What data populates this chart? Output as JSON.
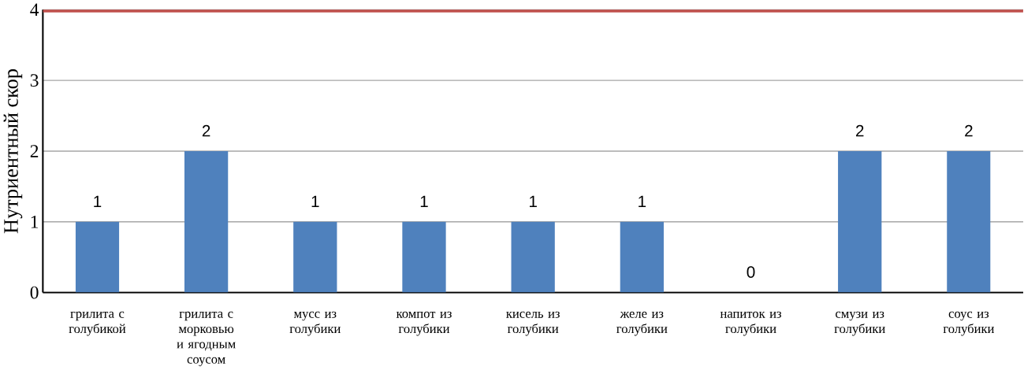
{
  "chart_data": {
    "type": "bar",
    "ylabel": "Нутриентный скор",
    "categories": [
      "грилита с голубикой",
      "грилита с морковью и ягодным соусом",
      "мусс из голубики",
      "компот из голубики",
      "кисель из голубики",
      "желе из голубики",
      "напиток из голубики",
      "смузи из голубики",
      "соус из голубики"
    ],
    "values": [
      1,
      2,
      1,
      1,
      1,
      1,
      0,
      2,
      2
    ],
    "color": "#4f81bd",
    "ylim": [
      0,
      4
    ],
    "yticks": [
      0,
      1,
      2,
      3,
      4
    ],
    "grid": "y",
    "data_labels": true,
    "ref_lines": [
      {
        "axis": "y",
        "value": 4,
        "color": "#c0504d"
      }
    ]
  }
}
